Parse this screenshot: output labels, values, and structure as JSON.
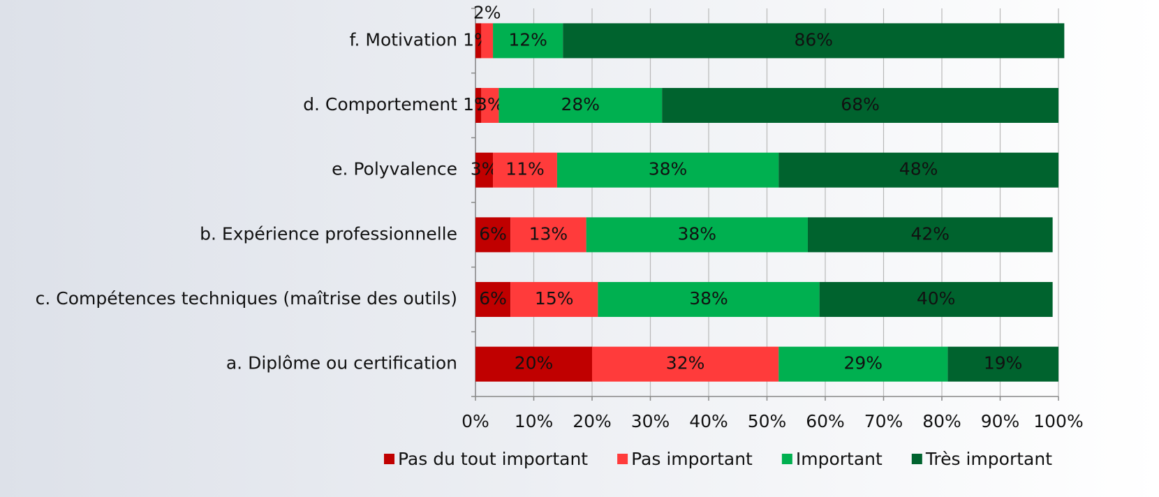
{
  "chart_data": {
    "type": "stacked_barh",
    "categories": [
      "f. Motivation",
      "d. Comportement",
      "e. Polyvalence",
      "b. Expérience professionnelle",
      "c. Compétences techniques (maîtrise des outils)",
      "a. Diplôme ou certification"
    ],
    "series": [
      {
        "name": "Pas du tout important",
        "color": "#c00000",
        "values": [
          1,
          1,
          3,
          6,
          6,
          20
        ],
        "value_labels": [
          "1%",
          "1%",
          "3%",
          "6%",
          "6%",
          "20%"
        ]
      },
      {
        "name": "Pas important",
        "color": "#ff3b3b",
        "values": [
          2,
          3,
          11,
          13,
          15,
          32
        ],
        "value_labels": [
          "2%",
          "3%",
          "11%",
          "13%",
          "15%",
          "32%"
        ]
      },
      {
        "name": "Important",
        "color": "#00b050",
        "values": [
          12,
          28,
          38,
          38,
          38,
          29
        ],
        "value_labels": [
          "12%",
          "28%",
          "38%",
          "38%",
          "38%",
          "29%"
        ]
      },
      {
        "name": "Très important",
        "color": "#00632e",
        "values": [
          86,
          68,
          48,
          42,
          40,
          19
        ],
        "value_labels": [
          "86%",
          "68%",
          "48%",
          "42%",
          "40%",
          "19%"
        ]
      }
    ],
    "xlim": [
      0,
      100
    ],
    "xticks": [
      {
        "value": 0,
        "label": "0%"
      },
      {
        "value": 10,
        "label": "10%"
      },
      {
        "value": 20,
        "label": "20%"
      },
      {
        "value": 30,
        "label": "30%"
      },
      {
        "value": 40,
        "label": "40%"
      },
      {
        "value": 50,
        "label": "50%"
      },
      {
        "value": 60,
        "label": "60%"
      },
      {
        "value": 70,
        "label": "70%"
      },
      {
        "value": 80,
        "label": "80%"
      },
      {
        "value": 90,
        "label": "90%"
      },
      {
        "value": 100,
        "label": "100%"
      }
    ],
    "grid": true,
    "legend": "bottom"
  }
}
